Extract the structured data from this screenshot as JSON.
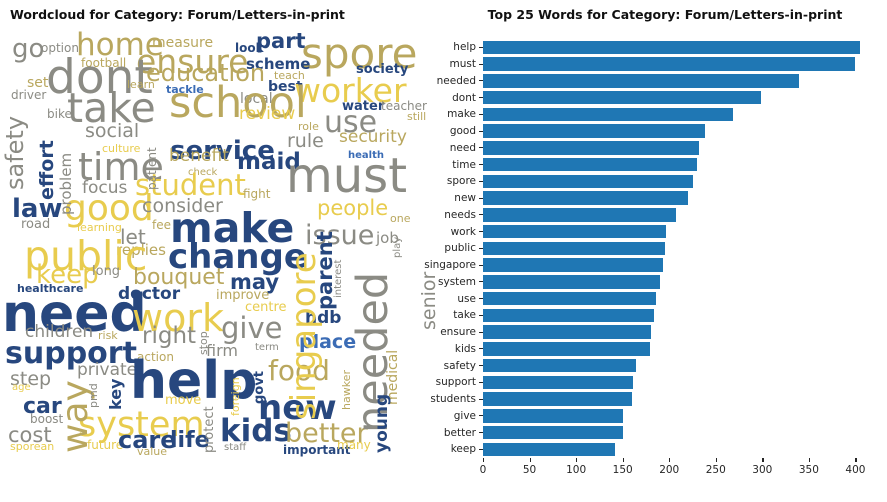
{
  "figure": {
    "left_title": "Wordcloud for Category: Forum/Letters-in-print",
    "right_title": "Top 25 Words for Category: Forum/Letters-in-print"
  },
  "colors": {
    "bar": "#1f77b4",
    "navy": "#27477e",
    "blue": "#3b6cb5",
    "gray": "#8b8b84",
    "khaki": "#b9a75e",
    "yellow": "#e8cc4e",
    "text": "#262626"
  },
  "word_fields": [
    "text",
    "x",
    "y",
    "size",
    "color",
    "vertical"
  ],
  "chart_data": [
    {
      "type": "wordcloud",
      "title": "Wordcloud for Category: Forum/Letters-in-print",
      "palette": [
        "#27477e",
        "#3b6cb5",
        "#8b8b84",
        "#b9a75e",
        "#e8cc4e"
      ],
      "words": [
        [
          "go",
          12,
          36,
          26,
          "gray",
          0
        ],
        [
          "option",
          41,
          42,
          12,
          "gray",
          0
        ],
        [
          "home",
          76,
          30,
          31,
          "khaki",
          0
        ],
        [
          "measure",
          152,
          36,
          14,
          "khaki",
          0
        ],
        [
          "look",
          235,
          42,
          12,
          "navy",
          0
        ],
        [
          "part",
          256,
          31,
          21,
          "navy",
          0
        ],
        [
          "spore",
          301,
          33,
          42,
          "khaki",
          0
        ],
        [
          "football",
          81,
          57,
          12,
          "khaki",
          0
        ],
        [
          "ensure",
          136,
          45,
          33,
          "khaki",
          0
        ],
        [
          "scheme",
          246,
          57,
          15,
          "navy",
          0
        ],
        [
          "set",
          27,
          76,
          14,
          "khaki",
          0
        ],
        [
          "dont",
          46,
          54,
          47,
          "gray",
          0
        ],
        [
          "learn",
          127,
          79,
          11,
          "khaki",
          0
        ],
        [
          "education",
          146,
          61,
          24,
          "khaki",
          0
        ],
        [
          "teach",
          274,
          70,
          11,
          "khaki",
          0
        ],
        [
          "society",
          356,
          63,
          13,
          "navy",
          0
        ],
        [
          "driver",
          11,
          89,
          12,
          "gray",
          0
        ],
        [
          "tackle",
          166,
          84,
          11,
          "blue",
          0
        ],
        [
          "best",
          268,
          80,
          14,
          "navy",
          0
        ],
        [
          "local",
          240,
          92,
          14,
          "gray",
          0
        ],
        [
          "worker",
          294,
          74,
          33,
          "yellow",
          0
        ],
        [
          "bike",
          47,
          108,
          12,
          "gray",
          0
        ],
        [
          "take",
          67,
          88,
          41,
          "gray",
          0
        ],
        [
          "school",
          169,
          82,
          43,
          "khaki",
          0
        ],
        [
          "water",
          342,
          100,
          13,
          "navy",
          0
        ],
        [
          "teacher",
          381,
          100,
          12,
          "gray",
          0
        ],
        [
          "review",
          239,
          106,
          17,
          "yellow",
          0
        ],
        [
          "still",
          407,
          111,
          11,
          "khaki",
          0
        ],
        [
          "use",
          324,
          108,
          30,
          "gray",
          0
        ],
        [
          "role",
          298,
          121,
          11,
          "khaki",
          0
        ],
        [
          "social",
          85,
          122,
          19,
          "gray",
          0
        ],
        [
          "rule",
          287,
          132,
          19,
          "gray",
          0
        ],
        [
          "security",
          339,
          129,
          17,
          "khaki",
          0
        ],
        [
          "culture",
          102,
          143,
          11,
          "yellow",
          0
        ],
        [
          "service",
          170,
          138,
          26,
          "navy",
          0
        ],
        [
          "maid",
          237,
          151,
          23,
          "navy",
          0
        ],
        [
          "health",
          348,
          151,
          10,
          "blue",
          0
        ],
        [
          "time",
          78,
          148,
          38,
          "gray",
          0
        ],
        [
          "benefit",
          169,
          148,
          17,
          "khaki",
          0
        ],
        [
          "must",
          286,
          152,
          48,
          "gray",
          0
        ],
        [
          "focus",
          82,
          180,
          17,
          "gray",
          0
        ],
        [
          "check",
          188,
          168,
          10,
          "khaki",
          0
        ],
        [
          "student",
          135,
          171,
          29,
          "yellow",
          0
        ],
        [
          "fight",
          243,
          188,
          12,
          "khaki",
          0
        ],
        [
          "law",
          12,
          196,
          26,
          "navy",
          0
        ],
        [
          "good",
          64,
          191,
          36,
          "yellow",
          0
        ],
        [
          "consider",
          142,
          197,
          19,
          "gray",
          0
        ],
        [
          "people",
          317,
          198,
          21,
          "yellow",
          0
        ],
        [
          "one",
          390,
          213,
          11,
          "khaki",
          0
        ],
        [
          "road",
          21,
          218,
          13,
          "gray",
          0
        ],
        [
          "learning",
          77,
          222,
          11,
          "yellow",
          0
        ],
        [
          "fee",
          152,
          219,
          12,
          "khaki",
          0
        ],
        [
          "let",
          120,
          227,
          20,
          "gray",
          0
        ],
        [
          "make",
          170,
          208,
          41,
          "navy",
          0
        ],
        [
          "issue",
          305,
          222,
          27,
          "gray",
          0
        ],
        [
          "replies",
          116,
          243,
          15,
          "khaki",
          0
        ],
        [
          "change",
          168,
          240,
          34,
          "navy",
          0
        ],
        [
          "public",
          24,
          236,
          41,
          "yellow",
          0
        ],
        [
          "job",
          376,
          231,
          15,
          "gray",
          0
        ],
        [
          "keep",
          36,
          262,
          26,
          "yellow",
          0
        ],
        [
          "long",
          92,
          265,
          13,
          "gray",
          0
        ],
        [
          "bouquet",
          133,
          267,
          22,
          "khaki",
          0
        ],
        [
          "may",
          230,
          272,
          21,
          "navy",
          0
        ],
        [
          "healthcare",
          17,
          283,
          11,
          "navy",
          0
        ],
        [
          "doctor",
          118,
          286,
          17,
          "navy",
          0
        ],
        [
          "improve",
          216,
          289,
          13,
          "khaki",
          0
        ],
        [
          "need",
          2,
          288,
          52,
          "navy",
          0
        ],
        [
          "work",
          132,
          299,
          38,
          "yellow",
          0
        ],
        [
          "centre",
          245,
          301,
          13,
          "yellow",
          0
        ],
        [
          "children",
          25,
          324,
          17,
          "gray",
          0
        ],
        [
          "risk",
          98,
          330,
          11,
          "khaki",
          0
        ],
        [
          "right",
          142,
          325,
          23,
          "gray",
          0
        ],
        [
          "give",
          221,
          314,
          29,
          "gray",
          0
        ],
        [
          "hdb",
          305,
          310,
          17,
          "navy",
          0
        ],
        [
          "support",
          5,
          339,
          30,
          "navy",
          0
        ],
        [
          "action",
          137,
          351,
          12,
          "khaki",
          0
        ],
        [
          "term",
          255,
          343,
          10,
          "gray",
          0
        ],
        [
          "firm",
          206,
          343,
          16,
          "gray",
          0
        ],
        [
          "place",
          299,
          333,
          19,
          "blue",
          0
        ],
        [
          "step",
          10,
          370,
          19,
          "gray",
          0
        ],
        [
          "private",
          77,
          362,
          17,
          "gray",
          0
        ],
        [
          "help",
          130,
          355,
          52,
          "navy",
          0
        ],
        [
          "food",
          268,
          357,
          28,
          "khaki",
          0
        ],
        [
          "age",
          12,
          383,
          10,
          "yellow",
          0
        ],
        [
          "move",
          165,
          394,
          13,
          "yellow",
          0
        ],
        [
          "car",
          23,
          396,
          22,
          "navy",
          0
        ],
        [
          "boost",
          30,
          413,
          12,
          "gray",
          0
        ],
        [
          "system",
          78,
          408,
          35,
          "yellow",
          0
        ],
        [
          "cost",
          8,
          425,
          21,
          "gray",
          0
        ],
        [
          "future",
          87,
          439,
          12,
          "yellow",
          0
        ],
        [
          "care",
          118,
          428,
          24,
          "navy",
          0
        ],
        [
          "life",
          170,
          430,
          22,
          "navy",
          0
        ],
        [
          "value",
          137,
          446,
          11,
          "khaki",
          0
        ],
        [
          "sporean",
          10,
          441,
          11,
          "yellow",
          0
        ],
        [
          "new",
          258,
          391,
          34,
          "navy",
          0
        ],
        [
          "kids",
          220,
          416,
          31,
          "navy",
          0
        ],
        [
          "better",
          285,
          420,
          27,
          "khaki",
          0
        ],
        [
          "staff",
          224,
          443,
          10,
          "gray",
          0
        ],
        [
          "important",
          283,
          444,
          12,
          "navy",
          0
        ],
        [
          "many",
          337,
          439,
          12,
          "yellow",
          0
        ],
        [
          "safety",
          3,
          190,
          24,
          "gray",
          1
        ],
        [
          "effort",
          38,
          200,
          19,
          "navy",
          1
        ],
        [
          "problem",
          59,
          215,
          15,
          "gray",
          1
        ],
        [
          "patient",
          146,
          190,
          12,
          "gray",
          1
        ],
        [
          "singapore",
          287,
          420,
          34,
          "yellow",
          1
        ],
        [
          "parent",
          315,
          310,
          21,
          "navy",
          1
        ],
        [
          "interest",
          334,
          298,
          10,
          "gray",
          1
        ],
        [
          "senior",
          420,
          330,
          19,
          "gray",
          1
        ],
        [
          "needed",
          352,
          433,
          43,
          "gray",
          1
        ],
        [
          "medical",
          386,
          405,
          14,
          "khaki",
          1
        ],
        [
          "play",
          393,
          258,
          10,
          "gray",
          1
        ],
        [
          "stop",
          198,
          355,
          11,
          "gray",
          1
        ],
        [
          "hawker",
          341,
          410,
          11,
          "khaki",
          1
        ],
        [
          "govt",
          253,
          404,
          13,
          "navy",
          1
        ],
        [
          "young",
          374,
          453,
          17,
          "navy",
          1
        ],
        [
          "foreign",
          230,
          416,
          11,
          "yellow",
          1
        ],
        [
          "way",
          58,
          453,
          36,
          "khaki",
          1
        ],
        [
          "key",
          108,
          410,
          16,
          "navy",
          1
        ],
        [
          "pmd",
          88,
          408,
          11,
          "gray",
          1
        ],
        [
          "protect",
          203,
          453,
          13,
          "gray",
          1
        ]
      ]
    },
    {
      "type": "bar",
      "orientation": "horizontal",
      "title": "Top 25 Words for Category: Forum/Letters-in-print",
      "categories": [
        "help",
        "must",
        "needed",
        "dont",
        "make",
        "good",
        "need",
        "time",
        "spore",
        "new",
        "needs",
        "work",
        "public",
        "singapore",
        "system",
        "use",
        "take",
        "ensure",
        "kids",
        "safety",
        "support",
        "students",
        "give",
        "better",
        "keep"
      ],
      "values": [
        405,
        400,
        339,
        299,
        268,
        238,
        232,
        230,
        225,
        220,
        207,
        197,
        196,
        193,
        190,
        186,
        184,
        180,
        179,
        164,
        161,
        160,
        150,
        150,
        142
      ],
      "xticks": [
        0,
        50,
        100,
        150,
        200,
        250,
        300,
        350,
        400
      ],
      "xlabel": "",
      "ylabel": "",
      "xlim": [
        0,
        421
      ],
      "grid": false,
      "bar_color": "#1f77b4",
      "legend": null
    }
  ]
}
